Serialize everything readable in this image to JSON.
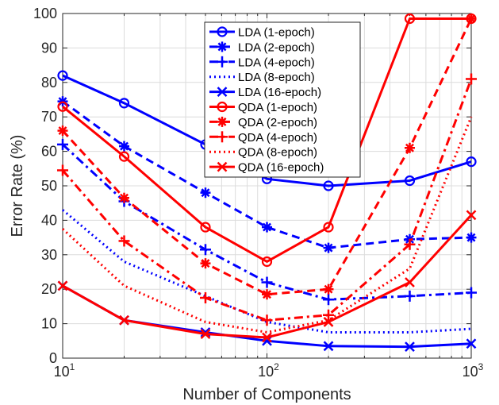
{
  "chart_data": {
    "type": "line",
    "xscale": "log",
    "xlim": [
      10,
      1000
    ],
    "ylim": [
      0,
      100
    ],
    "xlabel": "Number of Components",
    "ylabel": "Error Rate (%)",
    "grid": true,
    "legend_position": "top-center",
    "x_tick_labels": [
      {
        "value": 10,
        "base": "10",
        "exp": "1"
      },
      {
        "value": 100,
        "base": "10",
        "exp": "2"
      },
      {
        "value": 1000,
        "base": "10",
        "exp": "3"
      }
    ],
    "y_tick_labels": [
      "0",
      "10",
      "20",
      "30",
      "40",
      "50",
      "60",
      "70",
      "80",
      "90",
      "100"
    ],
    "x": [
      10,
      20,
      50,
      100,
      200,
      500,
      1000
    ],
    "colors": {
      "LDA": "#0000ff",
      "QDA": "#ff0000"
    },
    "series": [
      {
        "name": "LDA (1-epoch)",
        "color": "#0000ff",
        "dash": "solid",
        "marker": "circle",
        "values": [
          82,
          74,
          62,
          52,
          50,
          51.5,
          57
        ]
      },
      {
        "name": "LDA (2-epoch)",
        "color": "#0000ff",
        "dash": "dashed",
        "marker": "asterisk",
        "values": [
          74.5,
          61.5,
          48,
          38,
          32,
          34.5,
          35
        ]
      },
      {
        "name": "LDA (4-epoch)",
        "color": "#0000ff",
        "dash": "dashdot",
        "marker": "plus",
        "values": [
          62,
          45.5,
          31.5,
          22,
          17,
          18,
          19
        ]
      },
      {
        "name": "LDA (8-epoch)",
        "color": "#0000ff",
        "dash": "dotted",
        "marker": "none",
        "values": [
          43,
          28,
          18,
          10.5,
          7.5,
          7.5,
          8.5
        ]
      },
      {
        "name": "LDA (16-epoch)",
        "color": "#0000ff",
        "dash": "solid",
        "marker": "x",
        "values": [
          21,
          11,
          7.5,
          5,
          3.5,
          3.3,
          4.2
        ]
      },
      {
        "name": "QDA (1-epoch)",
        "color": "#ff0000",
        "dash": "solid",
        "marker": "circle",
        "values": [
          73,
          58.5,
          38,
          28,
          38,
          98.5,
          98.5
        ]
      },
      {
        "name": "QDA (2-epoch)",
        "color": "#ff0000",
        "dash": "dashed",
        "marker": "asterisk",
        "values": [
          66,
          46.5,
          27.5,
          18.5,
          20,
          61,
          98.5
        ]
      },
      {
        "name": "QDA (4-epoch)",
        "color": "#ff0000",
        "dash": "dashdot",
        "marker": "plus",
        "values": [
          54.5,
          34,
          17.5,
          11,
          12.5,
          33,
          81
        ]
      },
      {
        "name": "QDA (8-epoch)",
        "color": "#ff0000",
        "dash": "dotted",
        "marker": "none",
        "values": [
          37.5,
          21,
          10.5,
          7.5,
          11,
          26,
          70
        ]
      },
      {
        "name": "QDA (16-epoch)",
        "color": "#ff0000",
        "dash": "solid",
        "marker": "x",
        "values": [
          21,
          11,
          7,
          6,
          10.5,
          22,
          41.5
        ]
      }
    ]
  }
}
